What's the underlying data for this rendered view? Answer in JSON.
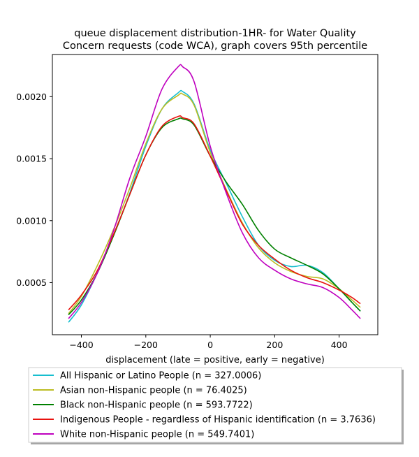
{
  "chart_data": {
    "type": "line",
    "title_line1": "queue displacement distribution-1HR-  for Water Quality",
    "title_line2": "Concern  requests (code WCA), graph covers 95th percentile",
    "xlabel": "displacement (late = positive, early = negative)",
    "ylabel": "",
    "xlim": [
      -490,
      520
    ],
    "ylim": [
      8e-05,
      0.00234
    ],
    "xticks": [
      -400,
      -200,
      0,
      200,
      400
    ],
    "xtick_labels": [
      "−400",
      "−200",
      "0",
      "200",
      "400"
    ],
    "yticks": [
      0.0005,
      0.001,
      0.0015,
      0.002
    ],
    "ytick_labels": [
      "0.0005",
      "0.0010",
      "0.0015",
      "0.0020"
    ],
    "grid": false,
    "legend_position": "bottom-center (below plot)",
    "x": [
      -440,
      -400,
      -350,
      -300,
      -250,
      -200,
      -150,
      -100,
      -85,
      -50,
      0,
      50,
      100,
      150,
      200,
      250,
      300,
      350,
      400,
      440,
      466
    ],
    "series": [
      {
        "name": "All Hispanic or Latino People (n = 327.0006)",
        "color": "#17becf",
        "values": [
          0.00018,
          0.00032,
          0.00058,
          0.00088,
          0.00122,
          0.0016,
          0.0019,
          0.00203,
          0.00204,
          0.00194,
          0.00157,
          0.0013,
          0.00103,
          0.0008,
          0.00068,
          0.00063,
          0.00064,
          0.00058,
          0.00045,
          0.00034,
          0.00027
        ]
      },
      {
        "name": "Asian non-Hispanic people (n = 76.4025)",
        "color": "#bcbd22",
        "values": [
          0.00025,
          0.00039,
          0.00064,
          0.00093,
          0.00126,
          0.00162,
          0.0019,
          0.00201,
          0.00202,
          0.00193,
          0.00155,
          0.00125,
          0.00098,
          0.00078,
          0.00066,
          0.00059,
          0.00055,
          0.00053,
          0.00045,
          0.00036,
          0.0003
        ]
      },
      {
        "name": "Black non-Hispanic people (n = 593.7722)",
        "color": "#008000",
        "values": [
          0.00024,
          0.00036,
          0.00058,
          0.00088,
          0.00121,
          0.00153,
          0.00175,
          0.00182,
          0.00182,
          0.00177,
          0.00152,
          0.00131,
          0.00113,
          0.00092,
          0.00077,
          0.0007,
          0.00064,
          0.00057,
          0.00045,
          0.00034,
          0.00027
        ]
      },
      {
        "name": "Indigenous People - regardless of Hispanic identification (n = 3.7636)",
        "color": "#e8120e",
        "values": [
          0.00028,
          0.0004,
          0.0006,
          0.00089,
          0.00121,
          0.00153,
          0.00176,
          0.00184,
          0.00183,
          0.00178,
          0.00152,
          0.00124,
          0.00097,
          0.0008,
          0.00069,
          0.0006,
          0.00054,
          0.0005,
          0.00044,
          0.00038,
          0.00033
        ]
      },
      {
        "name": "White non-Hispanic people (n = 549.7401)",
        "color": "#bf00bf",
        "values": [
          0.00021,
          0.00034,
          0.00058,
          0.00092,
          0.00134,
          0.00168,
          0.00206,
          0.00224,
          0.00224,
          0.00212,
          0.0016,
          0.00122,
          0.0009,
          0.0007,
          0.0006,
          0.00053,
          0.00049,
          0.00046,
          0.00038,
          0.00028,
          0.00021
        ]
      }
    ]
  }
}
